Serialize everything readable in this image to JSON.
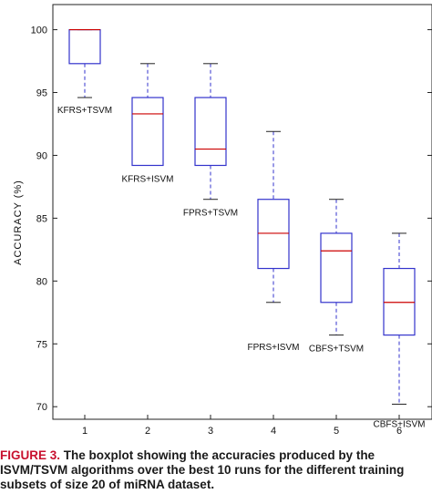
{
  "chart_data": {
    "type": "boxplot",
    "xlabel": "",
    "ylabel": "ACCURACY (%)",
    "ylim": [
      69,
      102
    ],
    "yticks": [
      70,
      75,
      80,
      85,
      90,
      95,
      100
    ],
    "categories": [
      "1",
      "2",
      "3",
      "4",
      "5",
      "6"
    ],
    "boxes": [
      {
        "label": "KFRS+TSVM",
        "whisker_low": 94.6,
        "q1": 97.3,
        "median": 100.0,
        "q3": 100.0,
        "whisker_high": 100.0
      },
      {
        "label": "KFRS+ISVM",
        "whisker_low": 89.2,
        "q1": 89.2,
        "median": 93.3,
        "q3": 94.6,
        "whisker_high": 97.3
      },
      {
        "label": "FPRS+TSVM",
        "whisker_low": 86.5,
        "q1": 89.2,
        "median": 90.5,
        "q3": 94.6,
        "whisker_high": 97.3
      },
      {
        "label": "FPRS+ISVM",
        "whisker_low": 78.3,
        "q1": 81.0,
        "median": 83.8,
        "q3": 86.5,
        "whisker_high": 91.9
      },
      {
        "label": "CBFS+TSVM",
        "whisker_low": 75.7,
        "q1": 78.3,
        "median": 82.4,
        "q3": 83.8,
        "whisker_high": 86.5
      },
      {
        "label": "CBFS+ISVM",
        "whisker_low": 70.2,
        "q1": 75.7,
        "median": 78.3,
        "q3": 81.0,
        "whisker_high": 83.8
      }
    ],
    "box_color": "#3333cc",
    "median_color": "#cc0000",
    "whisker_color": "#3333cc"
  },
  "caption": {
    "label": "FIGURE 3.",
    "line1": " The boxplot showing the accuracies produced by the",
    "line2": "ISVM/TSVM algorithms over the best 10 runs for the different training",
    "line3": "subsets of size 20 of miRNA dataset."
  }
}
